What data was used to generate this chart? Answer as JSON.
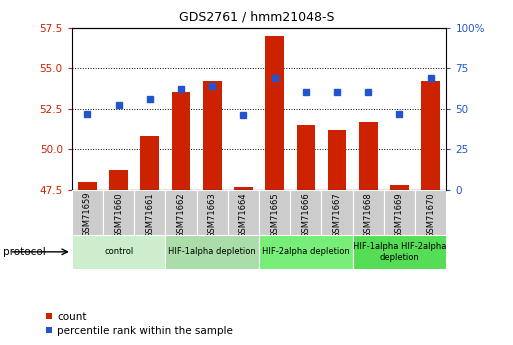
{
  "title": "GDS2761 / hmm21048-S",
  "samples": [
    "GSM71659",
    "GSM71660",
    "GSM71661",
    "GSM71662",
    "GSM71663",
    "GSM71664",
    "GSM71665",
    "GSM71666",
    "GSM71667",
    "GSM71668",
    "GSM71669",
    "GSM71670"
  ],
  "counts": [
    48.0,
    48.7,
    50.8,
    53.5,
    54.2,
    47.7,
    57.0,
    51.5,
    51.2,
    51.7,
    47.8,
    54.2
  ],
  "percentiles": [
    47,
    52,
    56,
    62,
    64,
    46,
    69,
    60,
    60,
    60,
    47,
    69
  ],
  "ylim_left": [
    47.5,
    57.5
  ],
  "ylim_right": [
    0,
    100
  ],
  "yticks_left": [
    47.5,
    50,
    52.5,
    55,
    57.5
  ],
  "yticks_right": [
    0,
    25,
    50,
    75,
    100
  ],
  "ytick_labels_right": [
    "0",
    "25",
    "50",
    "75",
    "100%"
  ],
  "bar_color": "#cc2200",
  "dot_color": "#2255cc",
  "bar_bottom": 47.5,
  "protocol_groups": [
    {
      "label": "control",
      "start": 0,
      "end": 2,
      "color": "#cceecc"
    },
    {
      "label": "HIF-1alpha depletion",
      "start": 3,
      "end": 5,
      "color": "#aaddaa"
    },
    {
      "label": "HIF-2alpha depletion",
      "start": 6,
      "end": 8,
      "color": "#77ee77"
    },
    {
      "label": "HIF-1alpha HIF-2alpha\ndepletion",
      "start": 9,
      "end": 11,
      "color": "#55dd55"
    }
  ],
  "protocol_label": "protocol",
  "legend_count_label": "count",
  "legend_percentile_label": "percentile rank within the sample",
  "tick_color_left": "#cc2200",
  "tick_color_right": "#2255cc",
  "xtick_bg_color": "#cccccc"
}
